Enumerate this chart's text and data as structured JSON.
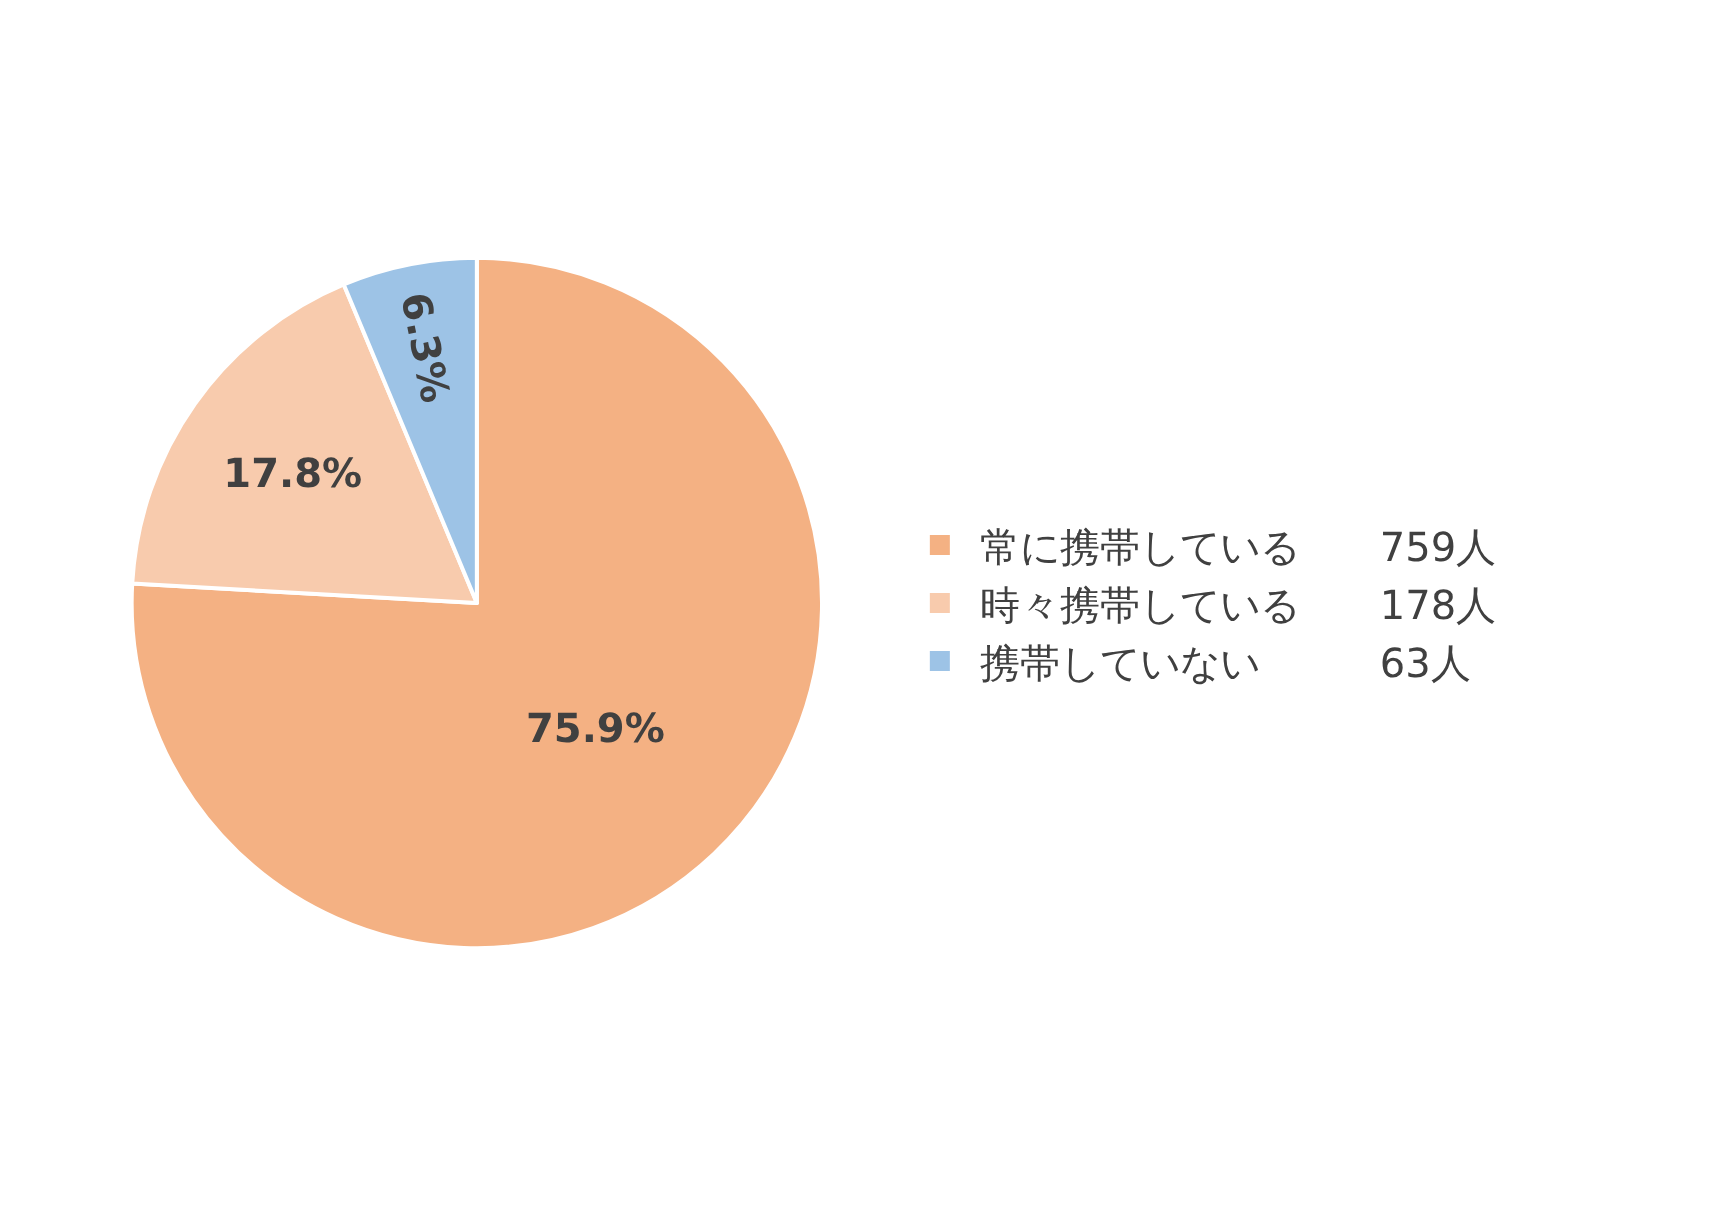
{
  "chart_data": {
    "type": "pie",
    "categories": [
      "常に携帯している　　759人",
      "時々携帯している　　178人",
      "携帯していない　　　63人"
    ],
    "values": [
      75.9,
      17.8,
      6.3
    ],
    "value_labels": [
      "75.9%",
      "17.8%",
      "6.3%"
    ],
    "colors": [
      "#f4b183",
      "#f8cbad",
      "#9dc3e6"
    ],
    "legend": "right"
  }
}
